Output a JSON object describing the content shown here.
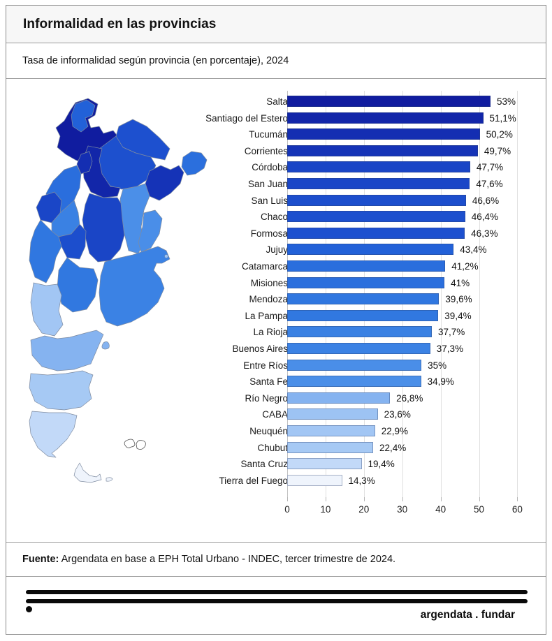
{
  "header": {
    "title": "Informalidad en las provincias",
    "subtitle": "Tasa de informalidad según provincia (en porcentaje), 2024"
  },
  "chart_data": {
    "type": "bar",
    "orientation": "horizontal",
    "title": "Informalidad en las provincias",
    "xlabel": "",
    "ylabel": "",
    "unit": "%",
    "xlim": [
      0,
      60
    ],
    "x_ticks": [
      0,
      10,
      20,
      30,
      40,
      50,
      60
    ],
    "grid": "vertical-light",
    "legend": "none",
    "bars": [
      {
        "label": "Salta",
        "value": 53,
        "display": "53%",
        "color": "#101c9f"
      },
      {
        "label": "Santiago del Estero",
        "value": 51.1,
        "display": "51,1%",
        "color": "#1226a9"
      },
      {
        "label": "Tucumán",
        "value": 50.2,
        "display": "50,2%",
        "color": "#142eb2"
      },
      {
        "label": "Corrientes",
        "value": 49.7,
        "display": "49,7%",
        "color": "#1533b7"
      },
      {
        "label": "Córdoba",
        "value": 47.7,
        "display": "47,7%",
        "color": "#1a45c6"
      },
      {
        "label": "San Juan",
        "value": 47.6,
        "display": "47,6%",
        "color": "#1a46c7"
      },
      {
        "label": "San Luis",
        "value": 46.6,
        "display": "46,6%",
        "color": "#1c4ecd"
      },
      {
        "label": "Chaco",
        "value": 46.4,
        "display": "46,4%",
        "color": "#1d50ce"
      },
      {
        "label": "Formosa",
        "value": 46.3,
        "display": "46,3%",
        "color": "#1d50cf"
      },
      {
        "label": "Jujuy",
        "value": 43.4,
        "display": "43,4%",
        "color": "#2261d8"
      },
      {
        "label": "Catamarca",
        "value": 41.2,
        "display": "41,2%",
        "color": "#2a6edd"
      },
      {
        "label": "Misiones",
        "value": 41,
        "display": "41%",
        "color": "#2b6fdd"
      },
      {
        "label": "Mendoza",
        "value": 39.6,
        "display": "39,6%",
        "color": "#3077e0"
      },
      {
        "label": "La Pampa",
        "value": 39.4,
        "display": "39,4%",
        "color": "#3178e0"
      },
      {
        "label": "La Rioja",
        "value": 37.7,
        "display": "37,7%",
        "color": "#3a81e3"
      },
      {
        "label": "Buenos Aires",
        "value": 37.3,
        "display": "37,3%",
        "color": "#3b82e4"
      },
      {
        "label": "Entre Ríos",
        "value": 35,
        "display": "35%",
        "color": "#4a8ee8"
      },
      {
        "label": "Santa Fe",
        "value": 34.9,
        "display": "34,9%",
        "color": "#4b8fe8"
      },
      {
        "label": "Río Negro",
        "value": 26.8,
        "display": "26,8%",
        "color": "#85b3f0"
      },
      {
        "label": "CABA",
        "value": 23.6,
        "display": "23,6%",
        "color": "#9dc3f3"
      },
      {
        "label": "Neuquén",
        "value": 22.9,
        "display": "22,9%",
        "color": "#a2c6f4"
      },
      {
        "label": "Chubut",
        "value": 22.4,
        "display": "22,4%",
        "color": "#a6c9f4"
      },
      {
        "label": "Santa Cruz",
        "value": 19.4,
        "display": "19,4%",
        "color": "#c2d9f8"
      },
      {
        "label": "Tierra del Fuego",
        "value": 14.3,
        "display": "14,3%",
        "color": "#eff4fc"
      }
    ]
  },
  "map": {
    "description": "argentina-province-choropleth",
    "islands": "malvinas-outline"
  },
  "source": {
    "label": "Fuente:",
    "text": " Argendata en base a EPH Total Urbano - INDEC, tercer trimestre de 2024."
  },
  "brand": {
    "wordmark": "argendata . fundar"
  },
  "colors": {
    "band_bg": "#f7f7f7",
    "outer_border": "#8b8b8b",
    "divider": "#9b9b9b",
    "gridline": "#e0e0e0",
    "text": "#111111",
    "logo_black": "#0a0a0a"
  }
}
